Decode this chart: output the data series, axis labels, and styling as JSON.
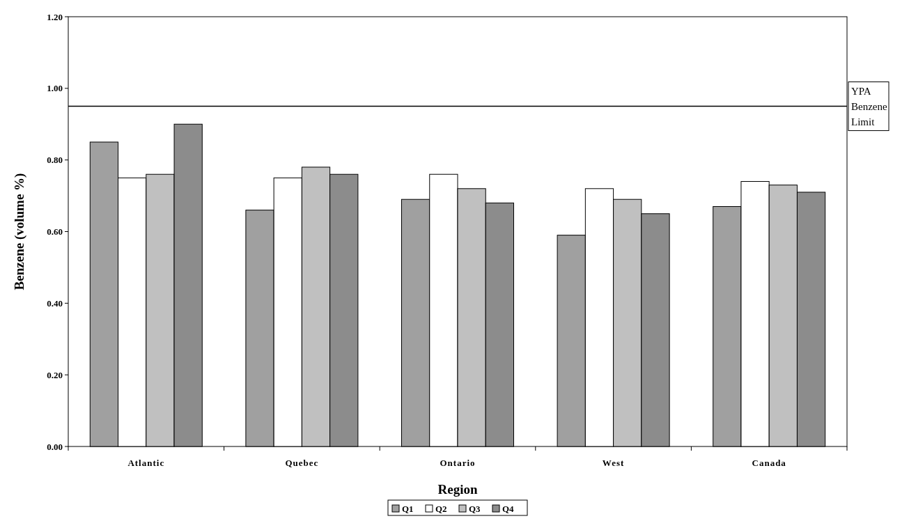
{
  "chart_data": {
    "type": "bar",
    "xlabel": "Region",
    "ylabel": "Benzene (volume %)",
    "categories": [
      "Atlantic",
      "Quebec",
      "Ontario",
      "West",
      "Canada"
    ],
    "series": [
      {
        "name": "Q1",
        "color": "#a0a0a0",
        "values": [
          0.85,
          0.66,
          0.69,
          0.59,
          0.67
        ]
      },
      {
        "name": "Q2",
        "color": "#ffffff",
        "values": [
          0.75,
          0.75,
          0.76,
          0.72,
          0.74
        ]
      },
      {
        "name": "Q3",
        "color": "#c0c0c0",
        "values": [
          0.76,
          0.78,
          0.72,
          0.69,
          0.73
        ]
      },
      {
        "name": "Q4",
        "color": "#8c8c8c",
        "values": [
          0.9,
          0.76,
          0.68,
          0.65,
          0.71
        ]
      }
    ],
    "ylim": [
      0,
      1.2
    ],
    "yticks": [
      {
        "value": 0,
        "label": "0.00"
      },
      {
        "value": 0.2,
        "label": "0.20"
      },
      {
        "value": 0.4,
        "label": "0.40"
      },
      {
        "value": 0.6,
        "label": "0.60"
      },
      {
        "value": 0.8,
        "label": "0.80"
      },
      {
        "value": 1.0,
        "label": "1.00"
      },
      {
        "value": 1.2,
        "label": "1.20"
      }
    ],
    "ref_lines": [
      {
        "axis": "y",
        "value": 0.95,
        "label": "YPA Benzene Limit",
        "color": "#000000"
      }
    ],
    "grid": false,
    "legend": "bottom"
  }
}
